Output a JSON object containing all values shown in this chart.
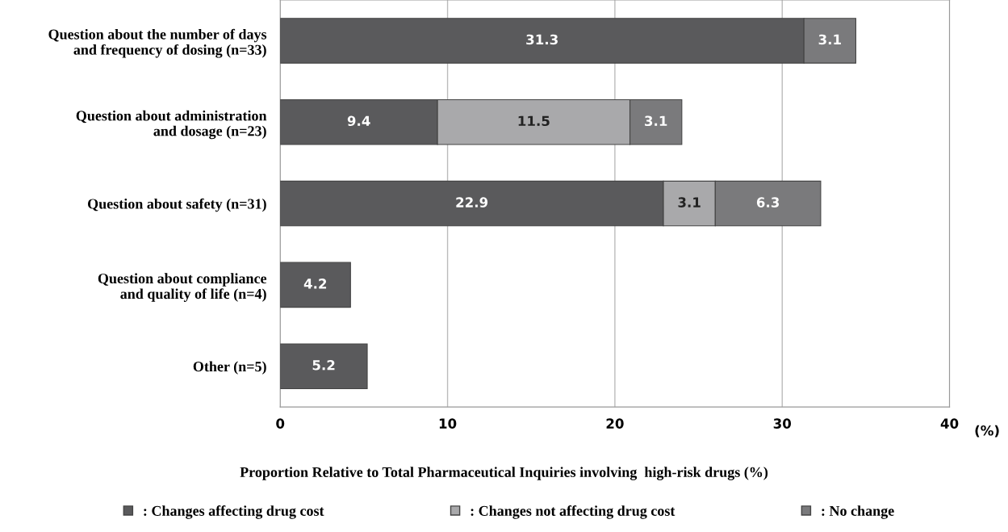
{
  "chart_data": {
    "type": "bar",
    "orientation": "horizontal",
    "stacked": true,
    "data_labels": true,
    "categories": [
      "Question about the number of days\nand frequency of dosing (n=33)",
      "Question about administration\nand dosage (n=23)",
      "Question about safety (n=31)",
      "Question about compliance\nand quality of life (n=4)",
      "Other (n=5)"
    ],
    "series": [
      {
        "name": ": Changes affecting drug cost",
        "color": "#5a5a5c",
        "values": [
          31.3,
          9.4,
          22.9,
          4.2,
          5.2
        ]
      },
      {
        "name": ": Changes not affecting drug cost",
        "color": "#a9a9ab",
        "values": [
          null,
          11.5,
          3.1,
          null,
          null
        ]
      },
      {
        "name": ": No change",
        "color": "#7a7a7c",
        "values": [
          3.1,
          3.1,
          6.3,
          null,
          null
        ]
      }
    ],
    "xlim": [
      0,
      40
    ],
    "xticks": [
      0,
      10,
      20,
      30,
      40
    ],
    "xlabel": "Proportion Relative to Total Pharmaceutical Inquiries involving  high-risk drugs (%)",
    "annotations": [
      "(%)"
    ],
    "grid": "x",
    "legend": "bottom"
  }
}
